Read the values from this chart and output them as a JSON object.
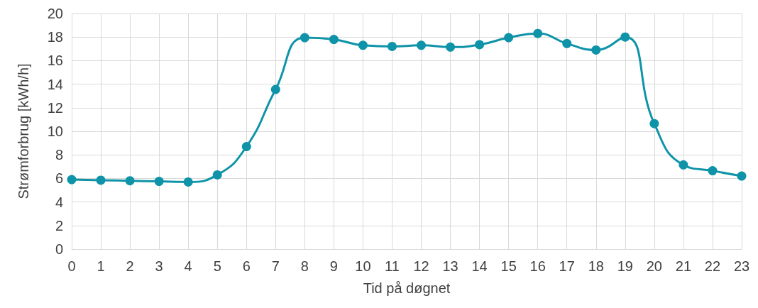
{
  "chart_data": {
    "type": "line",
    "xlabel": "Tid på døgnet",
    "ylabel": "Strømforbrug [kWh/h]",
    "x": [
      0,
      1,
      2,
      3,
      4,
      5,
      6,
      7,
      8,
      9,
      10,
      11,
      12,
      13,
      14,
      15,
      16,
      17,
      18,
      19,
      20,
      21,
      22,
      23
    ],
    "series": [
      {
        "color": "#0e93a8",
        "values": [
          5.9,
          5.85,
          5.8,
          5.75,
          5.7,
          6.3,
          8.7,
          13.55,
          17.95,
          17.8,
          17.3,
          17.2,
          17.3,
          17.15,
          17.35,
          17.95,
          18.3,
          17.45,
          16.9,
          18.0,
          10.65,
          7.15,
          6.65,
          6.2
        ]
      }
    ],
    "xlim": [
      0,
      23
    ],
    "xticks": [
      0,
      1,
      2,
      3,
      4,
      5,
      6,
      7,
      8,
      9,
      10,
      11,
      12,
      13,
      14,
      15,
      16,
      17,
      18,
      19,
      20,
      21,
      22,
      23
    ],
    "ylim": [
      0,
      20
    ],
    "yticks": [
      0,
      2,
      4,
      6,
      8,
      10,
      12,
      14,
      16,
      18,
      20
    ],
    "grid": true,
    "marker": "circle",
    "line_style": "solid"
  }
}
